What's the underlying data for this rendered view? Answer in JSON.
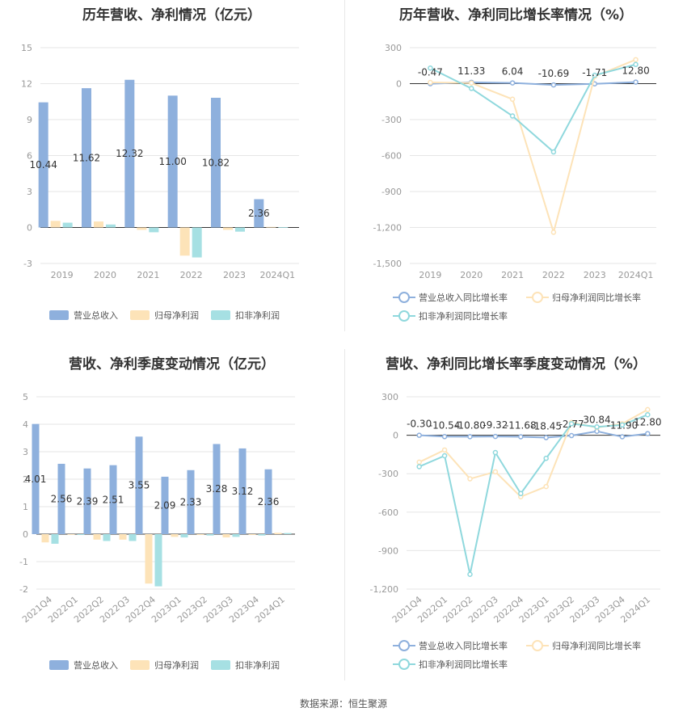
{
  "chart_data": [
    {
      "type": "bar",
      "title": "历年营收、净利情况（亿元）",
      "categories": [
        "2019",
        "2020",
        "2021",
        "2022",
        "2023",
        "2024Q1"
      ],
      "y_ticks": [
        "15",
        "12",
        "9",
        "6",
        "3",
        "0",
        "-3"
      ],
      "ylim": [
        -3,
        15
      ],
      "series": [
        {
          "name": "营业总收入",
          "color": "#8eb0dd",
          "values": [
            10.44,
            11.62,
            12.32,
            11.0,
            10.82,
            2.36
          ],
          "labels": [
            "10.44",
            "11.62",
            "12.32",
            "11.00",
            "10.82",
            "2.36"
          ]
        },
        {
          "name": "归母净利润",
          "color": "#fde3b8",
          "values": [
            0.55,
            0.5,
            -0.2,
            -2.35,
            -0.2,
            0.05
          ]
        },
        {
          "name": "扣非净利润",
          "color": "#a6e0e3",
          "values": [
            0.4,
            0.25,
            -0.4,
            -2.5,
            -0.35,
            0.03
          ]
        }
      ],
      "legend": "bottom"
    },
    {
      "type": "line",
      "title": "历年营收、净利同比增长率情况（%）",
      "categories": [
        "2019",
        "2020",
        "2021",
        "2022",
        "2023",
        "2024Q1"
      ],
      "y_ticks": [
        "300",
        "0",
        "-300",
        "-600",
        "-900",
        "-1,200",
        "-1,500"
      ],
      "ylim": [
        -1500,
        300
      ],
      "series": [
        {
          "name": "营业总收入同比增长率",
          "color": "#8eb0dd",
          "values": [
            -0.47,
            11.33,
            6.04,
            -10.69,
            -1.71,
            12.8
          ],
          "labels": [
            "-0.47",
            "11.33",
            "6.04",
            "-10.69",
            "-1.71",
            "12.80"
          ]
        },
        {
          "name": "归母净利润同比增长率",
          "color": "#fde3b8",
          "values": [
            10,
            5,
            -130,
            -1240,
            60,
            200
          ]
        },
        {
          "name": "扣非净利润同比增长率",
          "color": "#8fd8dd",
          "values": [
            130,
            -40,
            -270,
            -570,
            70,
            160
          ]
        }
      ],
      "legend": "bottom"
    },
    {
      "type": "bar",
      "title": "营收、净利季度变动情况（亿元）",
      "categories": [
        "2021Q4",
        "2022Q1",
        "2022Q2",
        "2022Q3",
        "2022Q4",
        "2023Q1",
        "2023Q2",
        "2023Q3",
        "2023Q4",
        "2024Q1"
      ],
      "y_ticks": [
        "5",
        "4",
        "3",
        "2",
        "1",
        "0",
        "-1",
        "-2"
      ],
      "ylim": [
        -2,
        5
      ],
      "series": [
        {
          "name": "营业总收入",
          "color": "#8eb0dd",
          "values": [
            4.01,
            2.56,
            2.39,
            2.51,
            3.55,
            2.09,
            2.33,
            3.28,
            3.12,
            2.36
          ],
          "labels": [
            "4.01",
            "2.56",
            "2.39",
            "2.51",
            "3.55",
            "2.09",
            "2.33",
            "3.28",
            "3.12",
            "2.36"
          ]
        },
        {
          "name": "归母净利润",
          "color": "#fde3b8",
          "values": [
            -0.3,
            -0.02,
            -0.2,
            -0.2,
            -1.8,
            -0.1,
            -0.03,
            -0.12,
            -0.03,
            0.05
          ]
        },
        {
          "name": "扣非净利润",
          "color": "#a6e0e3",
          "values": [
            -0.35,
            -0.03,
            -0.25,
            -0.25,
            -1.9,
            -0.12,
            -0.05,
            -0.1,
            -0.05,
            0.04
          ]
        }
      ],
      "legend": "bottom"
    },
    {
      "type": "line",
      "title": "营收、净利同比增长率季度变动情况（%）",
      "categories": [
        "2021Q4",
        "2022Q1",
        "2022Q2",
        "2022Q3",
        "2022Q4",
        "2023Q1",
        "2023Q2",
        "2023Q3",
        "2023Q4",
        "2024Q1"
      ],
      "y_ticks": [
        "300",
        "0",
        "-300",
        "-600",
        "-900",
        "-1,200"
      ],
      "ylim": [
        -1200,
        300
      ],
      "series": [
        {
          "name": "营业总收入同比增长率",
          "color": "#8eb0dd",
          "values": [
            -0.3,
            -10.54,
            -10.8,
            -9.32,
            -11.68,
            -18.45,
            -2.77,
            30.84,
            -11.9,
            12.8
          ],
          "labels": [
            "-0.30",
            "-10.54",
            "-10.80",
            "-9.32",
            "-11.68",
            "-18.45",
            "-2.77",
            "30.84",
            "-11.90",
            "12.80"
          ]
        },
        {
          "name": "归母净利润同比增长率",
          "color": "#fde3b8",
          "values": [
            -210,
            -115,
            -340,
            -285,
            -480,
            -400,
            100,
            60,
            90,
            200
          ]
        },
        {
          "name": "扣非净利润同比增长率",
          "color": "#8fd8dd",
          "values": [
            -245,
            -160,
            -1085,
            -135,
            -455,
            -180,
            90,
            65,
            80,
            160
          ]
        }
      ],
      "legend": "bottom"
    }
  ],
  "source": "数据来源：恒生聚源"
}
